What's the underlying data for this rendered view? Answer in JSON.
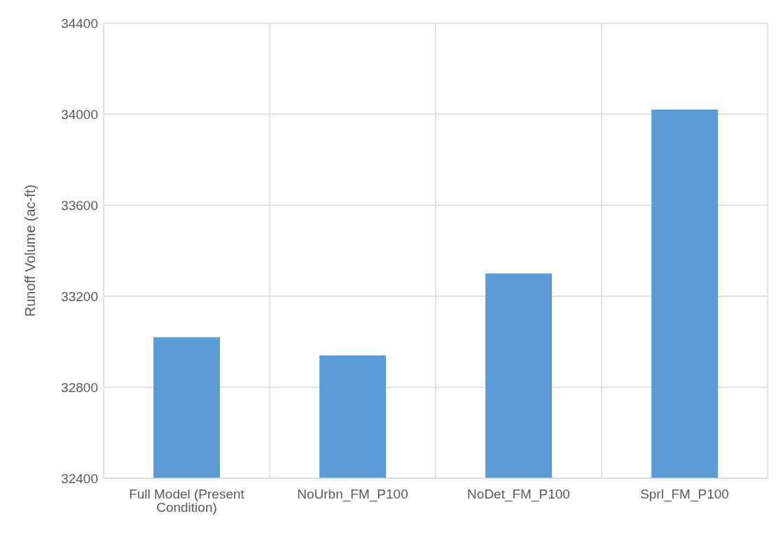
{
  "chart_data": {
    "type": "bar",
    "ylabel": "Runoff Volume (ac-ft)",
    "categories": [
      "Full Model (Present Condition)",
      "NoUrbn_FM_P100",
      "NoDet_FM_P100",
      "Sprl_FM_P100"
    ],
    "values": [
      33020,
      32940,
      33300,
      34020
    ],
    "color": "#5b9bd5",
    "ylim": [
      32400,
      34400
    ],
    "yticks": [
      32400,
      32800,
      33200,
      33600,
      34000,
      34400
    ],
    "grid": true
  }
}
